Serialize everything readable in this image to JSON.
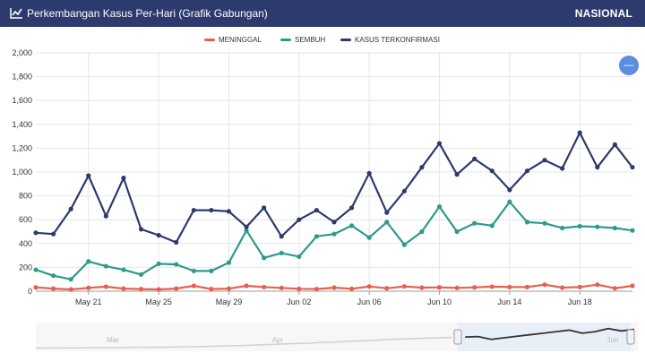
{
  "header": {
    "title": "Perkembangan Kasus Per-Hari (Grafik Gabungan)",
    "scope_label": "NASIONAL",
    "icon": "line-chart-icon"
  },
  "menu_button": {
    "label": "—",
    "icon": "hamburger-menu-icon"
  },
  "chart_data": {
    "type": "line",
    "legend_position": "top-center",
    "grid": true,
    "ylim": [
      0,
      2000
    ],
    "y_ticks": [
      "0",
      "200",
      "400",
      "600",
      "800",
      "1,000",
      "1,200",
      "1,400",
      "1,600",
      "1,800",
      "2,000"
    ],
    "x_start_day": 0,
    "x_tick_labels": [
      {
        "day": 3,
        "label": "May 21"
      },
      {
        "day": 7,
        "label": "May 25"
      },
      {
        "day": 11,
        "label": "May 29"
      },
      {
        "day": 15,
        "label": "Jun 02"
      },
      {
        "day": 19,
        "label": "Jun 06"
      },
      {
        "day": 23,
        "label": "Jun 10"
      },
      {
        "day": 27,
        "label": "Jun 14"
      },
      {
        "day": 31,
        "label": "Jun 18"
      }
    ],
    "series": [
      {
        "name": "MENINGGAL",
        "color": "#e8604c",
        "values": [
          32,
          22,
          15,
          28,
          38,
          22,
          18,
          15,
          22,
          45,
          18,
          22,
          45,
          35,
          28,
          20,
          18,
          30,
          20,
          40,
          25,
          40,
          30,
          32,
          28,
          32,
          38,
          35,
          35,
          55,
          30,
          35,
          55,
          25,
          45
        ]
      },
      {
        "name": "SEMBUH",
        "color": "#2e9a8a",
        "values": [
          180,
          130,
          100,
          250,
          210,
          180,
          140,
          230,
          225,
          170,
          170,
          240,
          510,
          280,
          320,
          290,
          460,
          480,
          550,
          450,
          580,
          390,
          500,
          710,
          500,
          570,
          550,
          750,
          580,
          570,
          530,
          545,
          540,
          530,
          510
        ]
      },
      {
        "name": "KASUS TERKONFIRMASI",
        "color": "#2c3a6e",
        "values": [
          490,
          480,
          690,
          970,
          630,
          950,
          520,
          470,
          410,
          680,
          680,
          670,
          540,
          700,
          460,
          600,
          680,
          580,
          700,
          990,
          660,
          840,
          1040,
          1240,
          980,
          1110,
          1010,
          850,
          1010,
          1100,
          1030,
          1330,
          1040,
          1230,
          1040
        ]
      }
    ]
  },
  "navigator": {
    "tick_labels": [
      "Mar",
      "Apr",
      "Jun"
    ],
    "values": [
      30,
      40,
      35,
      45,
      50,
      60,
      55,
      70,
      80,
      90,
      85,
      110,
      120,
      140,
      160,
      180,
      200,
      230,
      260,
      300,
      330,
      350,
      400,
      420,
      460,
      500,
      530,
      600,
      620,
      650,
      680,
      700,
      720,
      750,
      780,
      600,
      700,
      800,
      900,
      1000,
      1100,
      1200,
      1000,
      1100,
      1300,
      1150,
      1250
    ]
  }
}
